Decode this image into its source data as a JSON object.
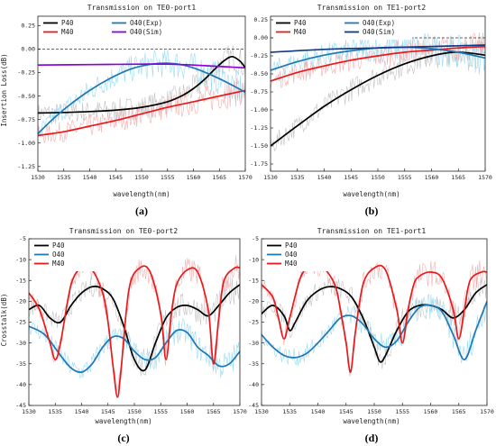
{
  "chart_data": [
    {
      "panel_label": "(a)",
      "type": "line",
      "title": "Transmission on TE0-port1",
      "xlabel": "wavelength(nm)",
      "ylabel": "Insertion Loss(dB)",
      "xlim": [
        1530,
        1570
      ],
      "ylim": [
        -1.3,
        0.35
      ],
      "xticks": [
        1530,
        1535,
        1540,
        1545,
        1550,
        1555,
        1560,
        1565,
        1570
      ],
      "yticks": [
        0.25,
        0.0,
        -0.25,
        -0.5,
        -0.75,
        -1.0,
        -1.25
      ],
      "ytick_labels": [
        "0.25",
        "0.00",
        "-0.25",
        "-0.50",
        "-0.75",
        "-1.00",
        "-1.25"
      ],
      "reference_line_y": 0,
      "grid": false,
      "legend_placement": "top",
      "series": [
        {
          "name": "P40",
          "color": "#000000",
          "noise_color": "#bdbdbd",
          "x": [
            1530,
            1535,
            1540,
            1545,
            1550,
            1555,
            1558,
            1560,
            1562,
            1564,
            1566,
            1567.5,
            1569,
            1570
          ],
          "y": [
            -0.68,
            -0.675,
            -0.665,
            -0.65,
            -0.62,
            -0.56,
            -0.49,
            -0.42,
            -0.33,
            -0.22,
            -0.12,
            -0.08,
            -0.13,
            -0.2
          ]
        },
        {
          "name": "M40",
          "color": "#e8191c",
          "noise_color": "#f4a5a5",
          "x": [
            1530,
            1535,
            1540,
            1545,
            1550,
            1555,
            1560,
            1565,
            1570
          ],
          "y": [
            -0.92,
            -0.88,
            -0.82,
            -0.76,
            -0.69,
            -0.62,
            -0.56,
            -0.5,
            -0.44
          ]
        },
        {
          "name": "O40(Exp)",
          "color": "#1f77b4",
          "noise_color": "#8fd8f2",
          "x": [
            1530,
            1533,
            1536,
            1540,
            1544,
            1548,
            1552,
            1555,
            1558,
            1561,
            1564,
            1567,
            1570
          ],
          "y": [
            -0.9,
            -0.74,
            -0.6,
            -0.44,
            -0.31,
            -0.21,
            -0.16,
            -0.15,
            -0.17,
            -0.22,
            -0.29,
            -0.37,
            -0.46
          ]
        },
        {
          "name": "O40(Sim)",
          "color": "#8e00d6",
          "x": [
            1530,
            1540,
            1550,
            1555,
            1560,
            1570
          ],
          "y": [
            -0.17,
            -0.165,
            -0.16,
            -0.16,
            -0.17,
            -0.2
          ]
        }
      ]
    },
    {
      "panel_label": "(b)",
      "type": "line",
      "title": "Transmission on TE1-port2",
      "xlabel": "wavelength(nm)",
      "ylabel": "",
      "xlim": [
        1530,
        1570
      ],
      "ylim": [
        -1.85,
        0.3
      ],
      "xticks": [
        1530,
        1535,
        1540,
        1545,
        1550,
        1555,
        1560,
        1565,
        1570
      ],
      "yticks": [
        0.25,
        0.0,
        -0.25,
        -0.5,
        -0.75,
        -1.0,
        -1.25,
        -1.5,
        -1.75
      ],
      "ytick_labels": [
        "0.25",
        "0.00",
        "-0.25",
        "-0.50",
        "-0.75",
        "-1.00",
        "-1.25",
        "-1.50",
        "-1.75"
      ],
      "reference_line_y": 0,
      "grid": false,
      "legend_placement": "top",
      "series": [
        {
          "name": "P40",
          "color": "#000000",
          "noise_color": "#bdbdbd",
          "x": [
            1530,
            1535,
            1540,
            1545,
            1550,
            1555,
            1560,
            1564,
            1567,
            1570
          ],
          "y": [
            -1.5,
            -1.22,
            -0.95,
            -0.72,
            -0.52,
            -0.36,
            -0.25,
            -0.2,
            -0.21,
            -0.24
          ]
        },
        {
          "name": "M40",
          "color": "#e8191c",
          "noise_color": "#f4a5a5",
          "x": [
            1530,
            1535,
            1540,
            1545,
            1550,
            1555,
            1560,
            1565,
            1570
          ],
          "y": [
            -0.6,
            -0.48,
            -0.39,
            -0.31,
            -0.25,
            -0.2,
            -0.17,
            -0.14,
            -0.12
          ]
        },
        {
          "name": "O40(Exp)",
          "color": "#1f77b4",
          "noise_color": "#8fd8f2",
          "x": [
            1530,
            1535,
            1540,
            1545,
            1550,
            1555,
            1560,
            1565,
            1570
          ],
          "y": [
            -0.45,
            -0.33,
            -0.24,
            -0.18,
            -0.14,
            -0.13,
            -0.15,
            -0.2,
            -0.28
          ]
        },
        {
          "name": "O40(Sim)",
          "color": "#0d3b8a",
          "x": [
            1530,
            1540,
            1550,
            1560,
            1570
          ],
          "y": [
            -0.2,
            -0.16,
            -0.14,
            -0.12,
            -0.1
          ]
        }
      ]
    },
    {
      "panel_label": "(c)",
      "type": "line",
      "title": "Transmission on TE0-port2",
      "xlabel": "wavelength(nm)",
      "ylabel": "Crosstalk(dB)",
      "xlim": [
        1530,
        1570
      ],
      "ylim": [
        -45,
        -5
      ],
      "xticks": [
        1530,
        1535,
        1540,
        1545,
        1550,
        1555,
        1560,
        1565,
        1570
      ],
      "yticks": [
        -5,
        -10,
        -15,
        -20,
        -25,
        -30,
        -35,
        -40,
        -45
      ],
      "ytick_labels": [
        "-5",
        "-10",
        "-15",
        "-20",
        "-25",
        "-30",
        "-35",
        "-40",
        "-45"
      ],
      "grid": false,
      "legend_placement": "top",
      "series": [
        {
          "name": "P40",
          "color": "#000000",
          "noise_color": "#bdbdbd",
          "x": [
            1530,
            1532,
            1534,
            1536,
            1538,
            1540,
            1542,
            1544,
            1546,
            1548,
            1550,
            1552,
            1554,
            1556,
            1558,
            1560,
            1562,
            1564,
            1566,
            1568,
            1570
          ],
          "y": [
            -22,
            -21,
            -24,
            -25,
            -21,
            -18,
            -16.5,
            -17,
            -19.5,
            -26,
            -34,
            -36.5,
            -30,
            -24,
            -21.5,
            -21,
            -22,
            -23.5,
            -21,
            -18,
            -16
          ]
        },
        {
          "name": "O40",
          "color": "#1f77b4",
          "noise_color": "#8fd8f2",
          "x": [
            1530,
            1533,
            1536,
            1538,
            1540,
            1542,
            1544,
            1546,
            1548,
            1550,
            1552,
            1554,
            1556,
            1558,
            1560,
            1562,
            1564,
            1566,
            1568,
            1570
          ],
          "y": [
            -26,
            -28,
            -33,
            -36,
            -37,
            -35,
            -31,
            -28.5,
            -29,
            -32,
            -34,
            -33.5,
            -30,
            -27,
            -27.5,
            -31,
            -33,
            -35.5,
            -35,
            -32
          ]
        },
        {
          "name": "M40",
          "color": "#e8191c",
          "noise_color": "#f4a5a5",
          "x": [
            1530,
            1532,
            1534,
            1535,
            1536,
            1538,
            1540,
            1542,
            1544,
            1545,
            1546,
            1546.8,
            1547.5,
            1549,
            1551,
            1553,
            1555,
            1556,
            1557,
            1558,
            1560,
            1562,
            1564,
            1565,
            1566,
            1567,
            1569,
            1570
          ],
          "y": [
            -18,
            -22,
            -30,
            -34,
            -30,
            -16,
            -12,
            -12.5,
            -18,
            -25,
            -36,
            -43,
            -36,
            -17,
            -12,
            -13,
            -23,
            -34,
            -23,
            -16,
            -12.5,
            -13,
            -22,
            -35,
            -24,
            -15,
            -12,
            -12
          ]
        }
      ]
    },
    {
      "panel_label": "(d)",
      "type": "line",
      "title": "Transmission on TE1-port1",
      "xlabel": "wavelength(nm)",
      "ylabel": "",
      "xlim": [
        1530,
        1570
      ],
      "ylim": [
        -45,
        -5
      ],
      "xticks": [
        1530,
        1535,
        1540,
        1545,
        1550,
        1555,
        1560,
        1565,
        1570
      ],
      "yticks": [
        -5,
        -10,
        -15,
        -20,
        -25,
        -30,
        -35,
        -40,
        -45
      ],
      "ytick_labels": [
        "-5",
        "-10",
        "-15",
        "-20",
        "-25",
        "-30",
        "-35",
        "-40",
        "-45"
      ],
      "grid": false,
      "legend_placement": "top",
      "series": [
        {
          "name": "P40",
          "color": "#000000",
          "noise_color": "#bdbdbd",
          "x": [
            1530,
            1532,
            1534,
            1535,
            1536,
            1538,
            1540,
            1542,
            1544,
            1546,
            1548,
            1550,
            1551,
            1552,
            1554,
            1556,
            1558,
            1560,
            1562,
            1564,
            1566,
            1568,
            1570
          ],
          "y": [
            -23,
            -21,
            -23.5,
            -27,
            -25,
            -20,
            -17.5,
            -16.5,
            -17,
            -19,
            -24,
            -31,
            -34.5,
            -33,
            -27,
            -22.5,
            -21,
            -21,
            -22,
            -24,
            -22,
            -18,
            -16
          ]
        },
        {
          "name": "O40",
          "color": "#1f77b4",
          "noise_color": "#8fd8f2",
          "x": [
            1530,
            1532,
            1534,
            1536,
            1538,
            1540,
            1542,
            1544,
            1546,
            1548,
            1550,
            1552,
            1554,
            1556,
            1558,
            1560,
            1562,
            1564,
            1566,
            1568,
            1570
          ],
          "y": [
            -28,
            -31,
            -33,
            -33.5,
            -32.5,
            -30,
            -27,
            -24,
            -23.5,
            -25.5,
            -29,
            -31,
            -29.5,
            -25,
            -21.5,
            -21,
            -22.5,
            -28,
            -34,
            -27,
            -20
          ]
        },
        {
          "name": "M40",
          "color": "#e8191c",
          "noise_color": "#f4a5a5",
          "x": [
            1530,
            1532,
            1533,
            1534,
            1535,
            1537,
            1539,
            1541,
            1543,
            1544,
            1545,
            1545.8,
            1546.6,
            1548,
            1550,
            1552,
            1554,
            1555,
            1556,
            1557,
            1558,
            1560,
            1562,
            1564,
            1565,
            1566,
            1567,
            1569,
            1570
          ],
          "y": [
            -16,
            -19,
            -24,
            -29,
            -24,
            -14,
            -11.5,
            -12,
            -16,
            -22,
            -30,
            -37,
            -28,
            -16,
            -12,
            -12.5,
            -22,
            -30,
            -22,
            -16,
            -14,
            -13,
            -14.5,
            -22,
            -29,
            -22,
            -15,
            -13,
            -13
          ]
        }
      ]
    }
  ]
}
